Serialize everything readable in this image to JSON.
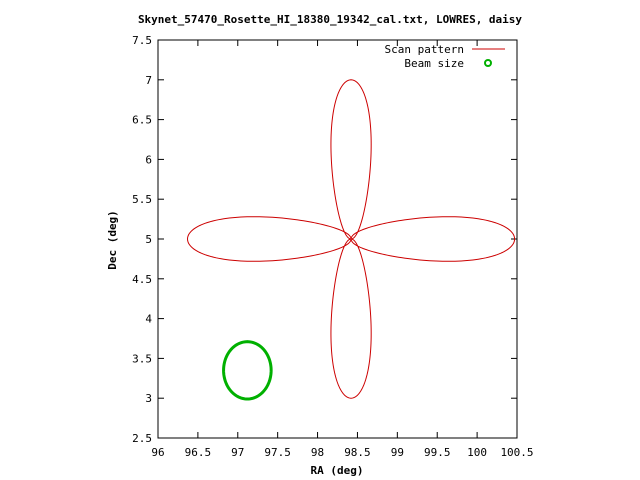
{
  "chart_data": {
    "type": "line",
    "title": "Skynet_57470_Rosette_HI_18380_19342_cal.txt, LOWRES, daisy",
    "xlabel": "RA (deg)",
    "ylabel": "Dec (deg)",
    "xlim": [
      96,
      100.5
    ],
    "ylim": [
      2.5,
      7.5
    ],
    "xticks": [
      "96",
      "96.5",
      "97",
      "97.5",
      "98",
      "98.5",
      "99",
      "99.5",
      "100",
      "100.5"
    ],
    "yticks": [
      "2.5",
      "3",
      "3.5",
      "4",
      "4.5",
      "5",
      "5.5",
      "6",
      "6.5",
      "7",
      "7.5"
    ],
    "grid": false,
    "legend_position": "top-right",
    "series": [
      {
        "name": "Scan pattern",
        "kind": "daisy-rosette",
        "color": "#cc0000",
        "center": [
          98.42,
          5.0
        ],
        "petal_count": 4,
        "petal_extent_dec": 2.0,
        "petal_extent_ra": 2.05,
        "petal_width_dec": 0.55,
        "petal_width_ra": 0.55
      },
      {
        "name": "Beam size",
        "kind": "circle",
        "color": "#00b000",
        "center": [
          97.12,
          3.35
        ],
        "radius_dec": 0.36
      }
    ]
  }
}
